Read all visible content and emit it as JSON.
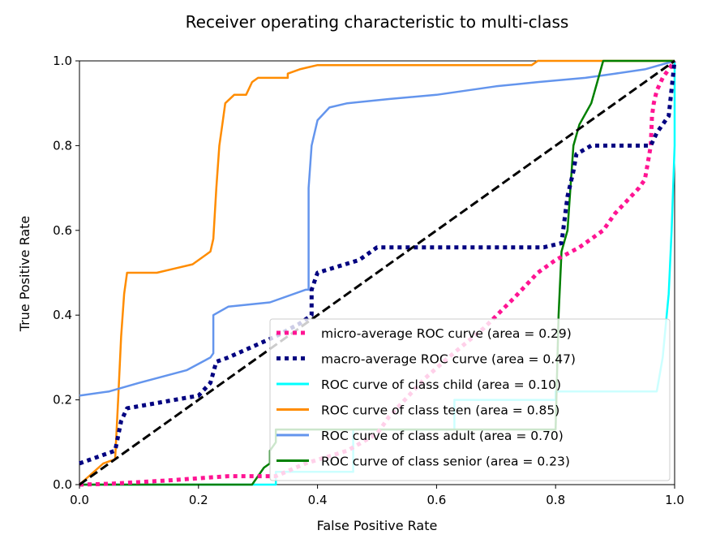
{
  "chart_data": {
    "type": "line",
    "title": "Receiver operating characteristic to multi-class",
    "xlabel": "False Positive Rate",
    "ylabel": "True Positive Rate",
    "xlim": [
      0.0,
      1.0
    ],
    "ylim": [
      0.0,
      1.0
    ],
    "xticks": [
      "0.0",
      "0.2",
      "0.4",
      "0.6",
      "0.8",
      "1.0"
    ],
    "yticks": [
      "0.0",
      "0.2",
      "0.4",
      "0.6",
      "0.8",
      "1.0"
    ],
    "grid": false,
    "legend_position": "lower-right",
    "series": [
      {
        "name": "micro-average ROC curve (area = 0.29)",
        "color": "#ff1493",
        "style": "dotted-thick",
        "points": [
          [
            0.0,
            0.0
          ],
          [
            0.05,
            0.002
          ],
          [
            0.15,
            0.01
          ],
          [
            0.25,
            0.02
          ],
          [
            0.33,
            0.02
          ],
          [
            0.38,
            0.05
          ],
          [
            0.45,
            0.08
          ],
          [
            0.5,
            0.12
          ],
          [
            0.52,
            0.16
          ],
          [
            0.58,
            0.25
          ],
          [
            0.62,
            0.3
          ],
          [
            0.68,
            0.37
          ],
          [
            0.73,
            0.44
          ],
          [
            0.77,
            0.5
          ],
          [
            0.8,
            0.53
          ],
          [
            0.84,
            0.56
          ],
          [
            0.88,
            0.6
          ],
          [
            0.9,
            0.64
          ],
          [
            0.92,
            0.67
          ],
          [
            0.94,
            0.7
          ],
          [
            0.95,
            0.72
          ],
          [
            0.955,
            0.76
          ],
          [
            0.96,
            0.8
          ],
          [
            0.962,
            0.87
          ],
          [
            0.965,
            0.9
          ],
          [
            0.97,
            0.93
          ],
          [
            0.98,
            0.96
          ],
          [
            0.99,
            0.98
          ],
          [
            1.0,
            1.0
          ]
        ]
      },
      {
        "name": "macro-average ROC curve (area = 0.47)",
        "color": "#000080",
        "style": "dotted-thick",
        "points": [
          [
            0.0,
            0.05
          ],
          [
            0.06,
            0.08
          ],
          [
            0.07,
            0.15
          ],
          [
            0.08,
            0.18
          ],
          [
            0.16,
            0.2
          ],
          [
            0.2,
            0.21
          ],
          [
            0.22,
            0.24
          ],
          [
            0.23,
            0.29
          ],
          [
            0.25,
            0.3
          ],
          [
            0.33,
            0.35
          ],
          [
            0.37,
            0.38
          ],
          [
            0.39,
            0.4
          ],
          [
            0.39,
            0.46
          ],
          [
            0.4,
            0.5
          ],
          [
            0.47,
            0.53
          ],
          [
            0.5,
            0.56
          ],
          [
            0.6,
            0.56
          ],
          [
            0.78,
            0.56
          ],
          [
            0.81,
            0.57
          ],
          [
            0.82,
            0.68
          ],
          [
            0.83,
            0.74
          ],
          [
            0.835,
            0.78
          ],
          [
            0.86,
            0.8
          ],
          [
            0.96,
            0.8
          ],
          [
            0.97,
            0.83
          ],
          [
            0.98,
            0.85
          ],
          [
            0.99,
            0.87
          ],
          [
            1.0,
            1.0
          ]
        ]
      },
      {
        "name": "ROC curve of class child (area = 0.10)",
        "color": "#00ffff",
        "style": "solid",
        "points": [
          [
            0.0,
            0.0
          ],
          [
            0.33,
            0.0
          ],
          [
            0.33,
            0.03
          ],
          [
            0.46,
            0.03
          ],
          [
            0.46,
            0.13
          ],
          [
            0.63,
            0.13
          ],
          [
            0.63,
            0.2
          ],
          [
            0.8,
            0.2
          ],
          [
            0.8,
            0.22
          ],
          [
            0.97,
            0.22
          ],
          [
            0.98,
            0.3
          ],
          [
            0.99,
            0.45
          ],
          [
            0.995,
            0.6
          ],
          [
            1.0,
            0.8
          ],
          [
            1.0,
            1.0
          ]
        ]
      },
      {
        "name": "ROC curve of class teen (area = 0.85)",
        "color": "#ff8c00",
        "style": "solid",
        "points": [
          [
            0.0,
            0.0
          ],
          [
            0.04,
            0.05
          ],
          [
            0.06,
            0.06
          ],
          [
            0.065,
            0.2
          ],
          [
            0.07,
            0.35
          ],
          [
            0.075,
            0.45
          ],
          [
            0.08,
            0.5
          ],
          [
            0.13,
            0.5
          ],
          [
            0.16,
            0.51
          ],
          [
            0.19,
            0.52
          ],
          [
            0.22,
            0.55
          ],
          [
            0.225,
            0.58
          ],
          [
            0.23,
            0.7
          ],
          [
            0.235,
            0.8
          ],
          [
            0.24,
            0.85
          ],
          [
            0.245,
            0.9
          ],
          [
            0.26,
            0.92
          ],
          [
            0.28,
            0.92
          ],
          [
            0.29,
            0.95
          ],
          [
            0.3,
            0.96
          ],
          [
            0.35,
            0.96
          ],
          [
            0.35,
            0.97
          ],
          [
            0.37,
            0.98
          ],
          [
            0.4,
            0.99
          ],
          [
            0.76,
            0.99
          ],
          [
            0.77,
            1.0
          ],
          [
            1.0,
            1.0
          ]
        ]
      },
      {
        "name": "ROC curve of class adult (area = 0.70)",
        "color": "#6495ed",
        "style": "solid",
        "points": [
          [
            0.0,
            0.21
          ],
          [
            0.05,
            0.22
          ],
          [
            0.1,
            0.24
          ],
          [
            0.18,
            0.27
          ],
          [
            0.22,
            0.3
          ],
          [
            0.225,
            0.31
          ],
          [
            0.225,
            0.4
          ],
          [
            0.25,
            0.42
          ],
          [
            0.32,
            0.43
          ],
          [
            0.38,
            0.46
          ],
          [
            0.385,
            0.46
          ],
          [
            0.385,
            0.7
          ],
          [
            0.39,
            0.8
          ],
          [
            0.4,
            0.86
          ],
          [
            0.42,
            0.89
          ],
          [
            0.45,
            0.9
          ],
          [
            0.52,
            0.91
          ],
          [
            0.6,
            0.92
          ],
          [
            0.7,
            0.94
          ],
          [
            0.77,
            0.95
          ],
          [
            0.85,
            0.96
          ],
          [
            0.9,
            0.97
          ],
          [
            0.95,
            0.98
          ],
          [
            1.0,
            1.0
          ]
        ]
      },
      {
        "name": "ROC curve of class senior (area = 0.23)",
        "color": "#008000",
        "style": "solid",
        "points": [
          [
            0.0,
            0.0
          ],
          [
            0.29,
            0.0
          ],
          [
            0.3,
            0.02
          ],
          [
            0.31,
            0.04
          ],
          [
            0.32,
            0.05
          ],
          [
            0.32,
            0.08
          ],
          [
            0.33,
            0.1
          ],
          [
            0.33,
            0.13
          ],
          [
            0.72,
            0.13
          ],
          [
            0.8,
            0.13
          ],
          [
            0.805,
            0.4
          ],
          [
            0.81,
            0.55
          ],
          [
            0.82,
            0.6
          ],
          [
            0.825,
            0.7
          ],
          [
            0.83,
            0.8
          ],
          [
            0.84,
            0.85
          ],
          [
            0.86,
            0.9
          ],
          [
            0.87,
            0.95
          ],
          [
            0.88,
            1.0
          ],
          [
            1.0,
            1.0
          ]
        ]
      },
      {
        "name": "",
        "color": "#000000",
        "style": "dashed",
        "points": [
          [
            0.0,
            0.0
          ],
          [
            1.0,
            1.0
          ]
        ]
      }
    ]
  }
}
